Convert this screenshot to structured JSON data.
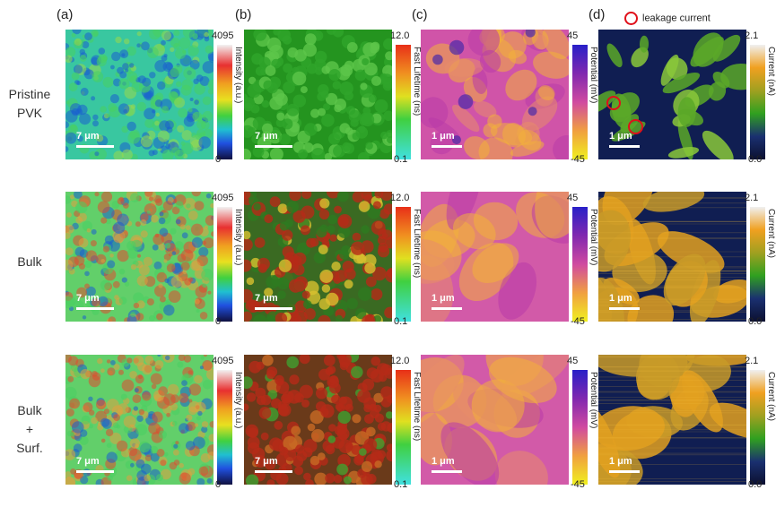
{
  "panel_labels": [
    "(a)",
    "(b)",
    "(c)",
    "(d)"
  ],
  "legend": {
    "text": "leakage current",
    "icon": "red-circle-icon",
    "color": "#e0101a"
  },
  "rows": [
    {
      "label_lines": [
        "Pristine",
        "PVK"
      ]
    },
    {
      "label_lines": [
        "Bulk"
      ]
    },
    {
      "label_lines": [
        "Bulk",
        "+",
        "Surf."
      ]
    }
  ],
  "columns": [
    {
      "colorbar_title": "Intensity (a.u.)",
      "max": "4095",
      "min": "0",
      "scale_bar": "7 μm"
    },
    {
      "colorbar_title": "Fast Lifetime (ns)",
      "max": "12.0",
      "min": "0.1",
      "scale_bar": "7 μm"
    },
    {
      "colorbar_title": "Potential (mV)",
      "max": "45",
      "min": "-45",
      "scale_bar": "1 μm"
    },
    {
      "colorbar_title": "Current (nA)",
      "max": "2.1",
      "min": "0.0",
      "scale_bar": "1 μm"
    }
  ],
  "annotations": {
    "leakage_circles_in_row": 1
  },
  "colors": {
    "pl_low": "#1a5fd0",
    "pl_mid": "#48d060",
    "pl_high": "#e04a30",
    "flim_green": "#2fa52a",
    "flim_red": "#b52a18",
    "kpfm_light": "#f2b03a",
    "kpfm_dark": "#b83aa8",
    "cafm_base": "#101e52",
    "cafm_high": "#e2a020"
  }
}
